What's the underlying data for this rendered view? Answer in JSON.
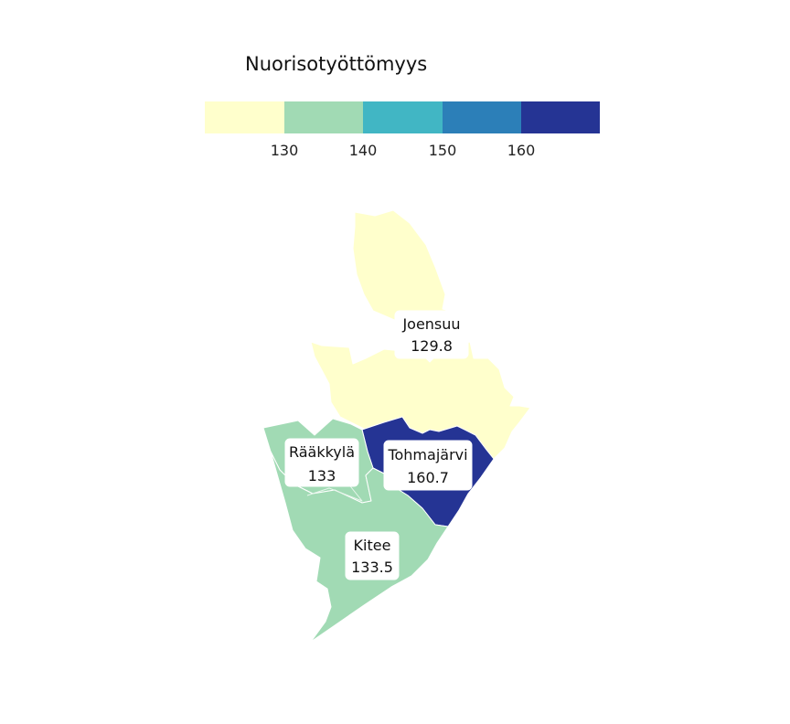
{
  "legend": {
    "title": "Nuorisotyöttömyys",
    "ticks": [
      "130",
      "140",
      "150",
      "160"
    ],
    "colors": [
      "#ffffcc",
      "#a1dab4",
      "#41b6c4",
      "#2c7fb8",
      "#253494"
    ]
  },
  "regions": [
    {
      "name": "Joensuu",
      "value": "129.8",
      "color": "#ffffcc"
    },
    {
      "name": "Rääkkylä",
      "value": "133",
      "color": "#a1dab4"
    },
    {
      "name": "Tohmajärvi",
      "value": "160.7",
      "color": "#253494"
    },
    {
      "name": "Kitee",
      "value": "133.5",
      "color": "#a1dab4"
    }
  ]
}
